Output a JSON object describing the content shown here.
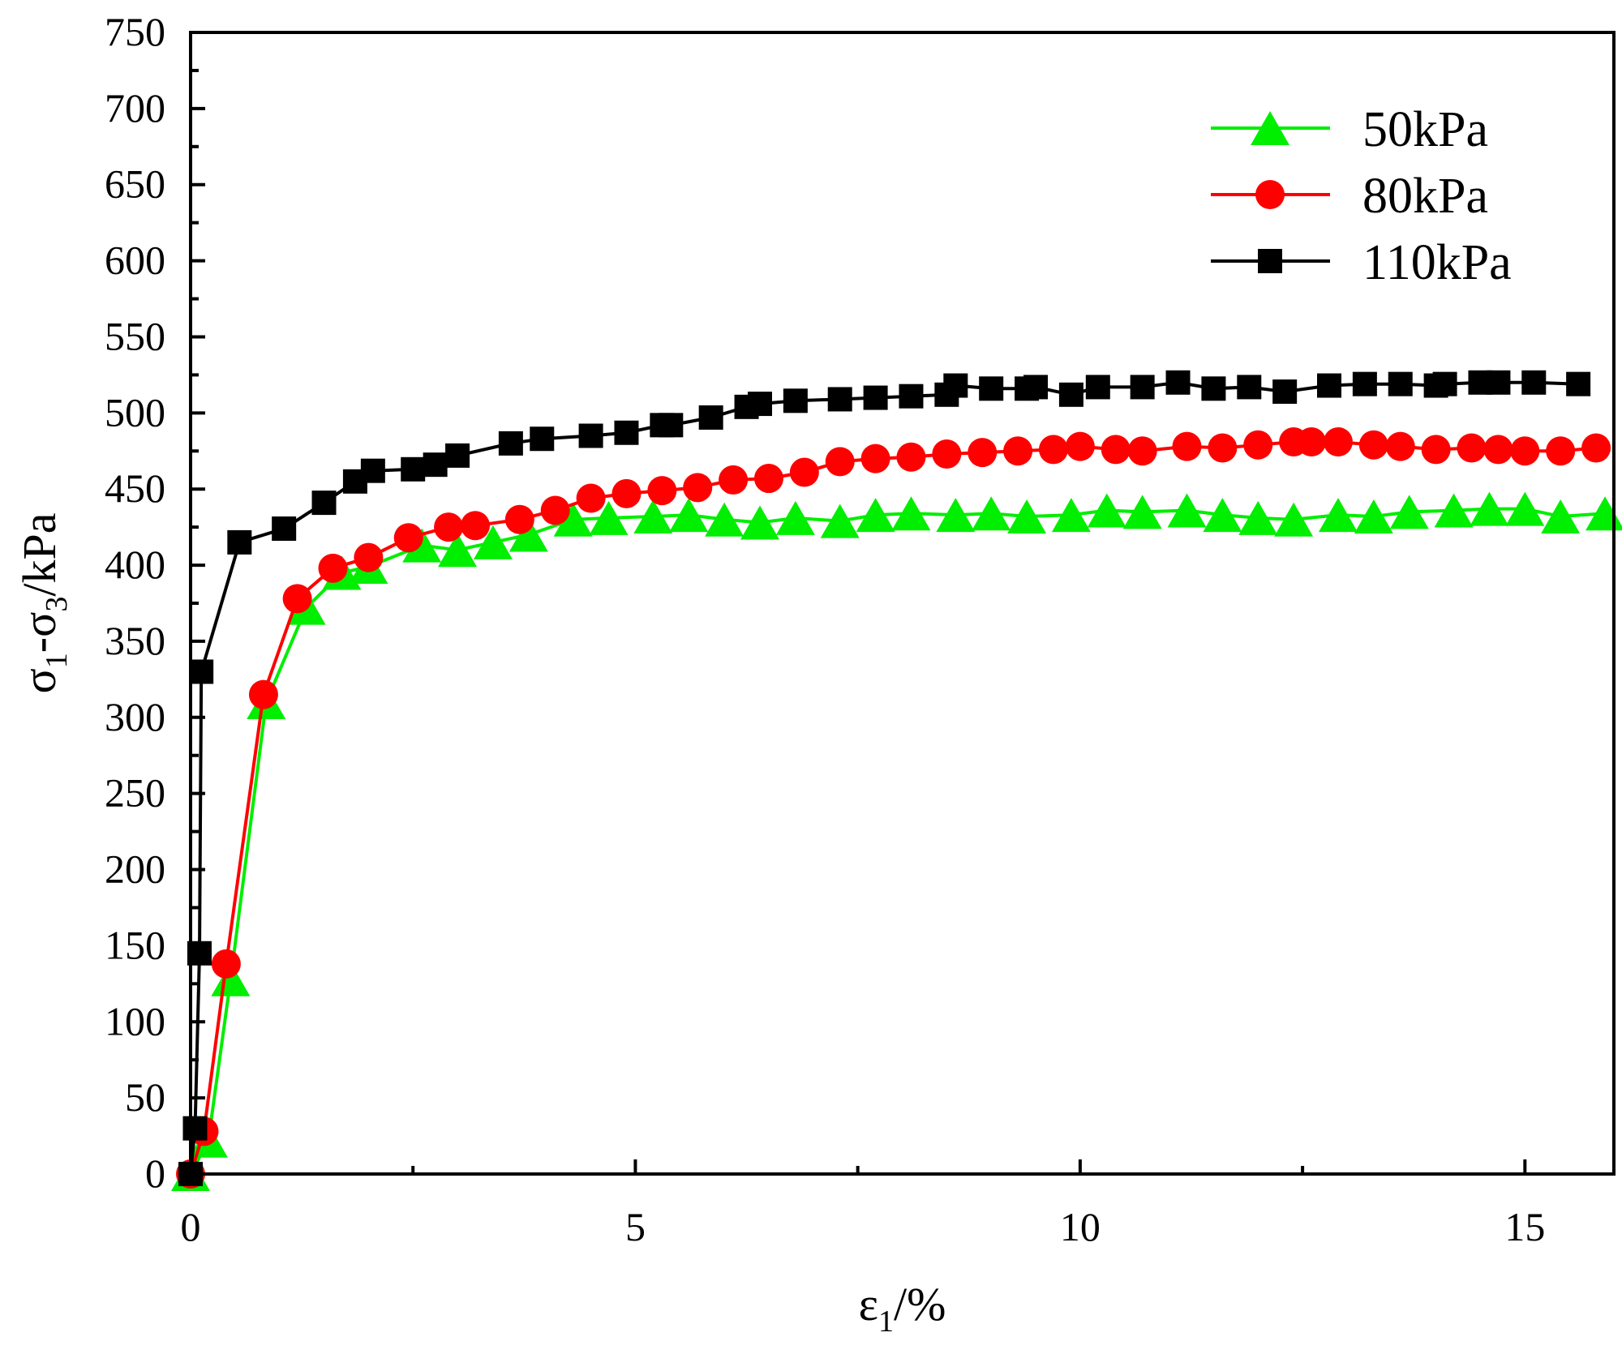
{
  "chart_data": {
    "type": "line",
    "xlabel_base": "ε",
    "xlabel_sub": "1",
    "xlabel_suffix": "/%",
    "ylabel_parts": [
      {
        "text": "σ",
        "sub": false
      },
      {
        "text": "1",
        "sub": true
      },
      {
        "text": "-σ",
        "sub": false
      },
      {
        "text": "3",
        "sub": true
      },
      {
        "text": "/kPa",
        "sub": false
      }
    ],
    "xlim": [
      0,
      16
    ],
    "ylim": [
      0,
      750
    ],
    "xticks": [
      0,
      5,
      10,
      15
    ],
    "xtick_labels": [
      "0",
      "5",
      "10",
      "15"
    ],
    "yticks": [
      0,
      50,
      100,
      150,
      200,
      250,
      300,
      350,
      400,
      450,
      500,
      550,
      600,
      650,
      700,
      750
    ],
    "ytick_labels": [
      "0",
      "50",
      "100",
      "150",
      "200",
      "250",
      "300",
      "350",
      "400",
      "450",
      "500",
      "550",
      "600",
      "650",
      "700",
      "750"
    ],
    "grid": false,
    "legend_position": "top-right",
    "series": [
      {
        "name": "50kPa",
        "color": "#00ee00",
        "marker": "triangle",
        "x": [
          0.0,
          0.2,
          0.45,
          0.85,
          1.3,
          1.7,
          2.0,
          2.6,
          3.0,
          3.4,
          3.8,
          4.3,
          4.7,
          5.2,
          5.6,
          6.0,
          6.4,
          6.8,
          7.3,
          7.7,
          8.1,
          8.6,
          9.0,
          9.4,
          9.9,
          10.3,
          10.7,
          11.2,
          11.6,
          12.0,
          12.4,
          12.9,
          13.3,
          13.7,
          14.2,
          14.6,
          15.0,
          15.4,
          15.9
        ],
        "y": [
          0,
          22,
          128,
          310,
          372,
          395,
          399,
          413,
          410,
          415,
          420,
          430,
          431,
          432,
          433,
          430,
          428,
          431,
          429,
          433,
          434,
          433,
          434,
          432,
          433,
          436,
          435,
          436,
          433,
          431,
          430,
          433,
          432,
          435,
          436,
          437,
          437,
          432,
          434
        ]
      },
      {
        "name": "80kPa",
        "color": "#ff0000",
        "marker": "circle",
        "x": [
          0.0,
          0.15,
          0.4,
          0.82,
          1.2,
          1.6,
          2.0,
          2.45,
          2.9,
          3.2,
          3.7,
          4.1,
          4.5,
          4.9,
          5.3,
          5.7,
          6.1,
          6.5,
          6.9,
          7.3,
          7.7,
          8.1,
          8.5,
          8.9,
          9.3,
          9.7,
          10.0,
          10.4,
          10.7,
          11.2,
          11.6,
          12.0,
          12.4,
          12.6,
          12.9,
          13.3,
          13.6,
          14.0,
          14.4,
          14.7,
          15.0,
          15.4,
          15.8
        ],
        "y": [
          0,
          28,
          138,
          315,
          378,
          398,
          405,
          418,
          425,
          426,
          430,
          436,
          444,
          447,
          449,
          451,
          456,
          457,
          461,
          468,
          470,
          471,
          473,
          474,
          475,
          476,
          478,
          476,
          475,
          478,
          477,
          479,
          481,
          481,
          481,
          479,
          478,
          476,
          477,
          476,
          475,
          475,
          477
        ]
      },
      {
        "name": "110kPa",
        "color": "#000000",
        "marker": "square",
        "x": [
          0.0,
          0.05,
          0.1,
          0.12,
          0.55,
          1.05,
          1.5,
          1.85,
          2.05,
          2.5,
          2.75,
          3.0,
          3.6,
          3.95,
          4.5,
          4.9,
          5.3,
          5.4,
          5.85,
          6.25,
          6.4,
          6.8,
          7.3,
          7.7,
          8.1,
          8.5,
          8.6,
          9.0,
          9.4,
          9.5,
          9.9,
          10.2,
          10.7,
          11.1,
          11.5,
          11.9,
          12.3,
          12.8,
          13.2,
          13.6,
          14.0,
          14.1,
          14.5,
          14.7,
          15.1,
          15.6
        ],
        "y": [
          0,
          30,
          145,
          330,
          415,
          424,
          441,
          455,
          462,
          463,
          466,
          472,
          480,
          483,
          485,
          487,
          492,
          492,
          497,
          504,
          506,
          508,
          509,
          510,
          511,
          512,
          518,
          516,
          516,
          517,
          512,
          517,
          517,
          520,
          516,
          517,
          514,
          518,
          519,
          519,
          518,
          519,
          520,
          520,
          520,
          519
        ]
      }
    ]
  }
}
